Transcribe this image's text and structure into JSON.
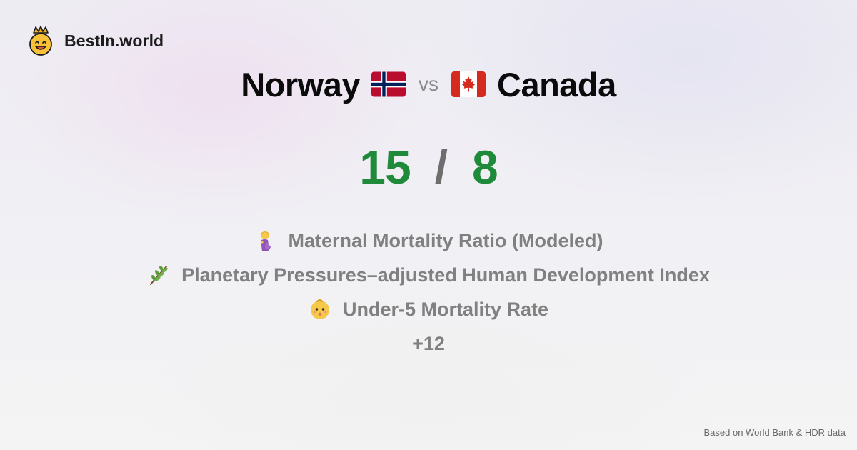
{
  "brand": {
    "name": "BestIn.world",
    "logo_icon": "crowned-smiley-icon"
  },
  "comparison": {
    "left_country": "Norway",
    "left_flag": "norway-flag-icon",
    "vs_label": "vs",
    "right_country": "Canada",
    "right_flag": "canada-flag-icon",
    "left_score": "15",
    "separator": "/",
    "right_score": "8"
  },
  "metrics": [
    {
      "icon": "pregnant-woman-icon",
      "label": "Maternal Mortality Ratio (Modeled)"
    },
    {
      "icon": "herb-branch-icon",
      "label": "Planetary Pressures–adjusted Human Development Index"
    },
    {
      "icon": "baby-icon",
      "label": "Under-5 Mortality Rate"
    }
  ],
  "more_label": "+12",
  "footer": {
    "source": "Based on World Bank & HDR data"
  },
  "colors": {
    "score": "#1f8a3a",
    "separator": "#6e6e6e",
    "metric_text": "#808080",
    "background": "#f2f1f5"
  }
}
